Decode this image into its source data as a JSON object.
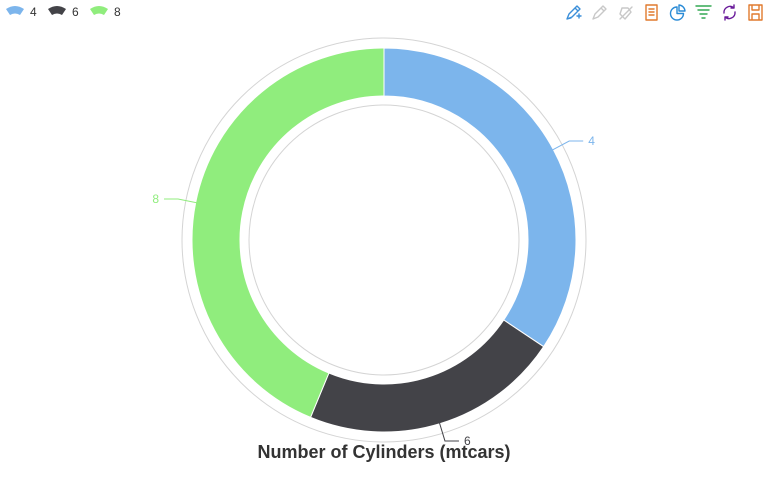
{
  "toolbox": {
    "items": [
      {
        "name": "mark-tool-icon",
        "color": "#3b8fd9",
        "enabled": true
      },
      {
        "name": "mark-undo-icon",
        "color": "#c8c8c8",
        "enabled": false
      },
      {
        "name": "mark-clear-icon",
        "color": "#c8c8c8",
        "enabled": false
      },
      {
        "name": "data-view-icon",
        "color": "#e07a2e",
        "enabled": true
      },
      {
        "name": "pie-chart-icon",
        "color": "#2a8bd6",
        "enabled": true
      },
      {
        "name": "funnel-chart-icon",
        "color": "#34a853",
        "enabled": true
      },
      {
        "name": "restore-icon",
        "color": "#6a1b9a",
        "enabled": true
      },
      {
        "name": "save-image-icon",
        "color": "#e07a2e",
        "enabled": true
      }
    ]
  },
  "chart_data": {
    "type": "pie",
    "variant": "donut",
    "title": "Number of Cylinders (mtcars)",
    "categories": [
      "4",
      "6",
      "8"
    ],
    "values": [
      11,
      7,
      14
    ],
    "colors": [
      "#7cb5ec",
      "#434348",
      "#90ed7d"
    ],
    "legend_position": "top-left"
  }
}
